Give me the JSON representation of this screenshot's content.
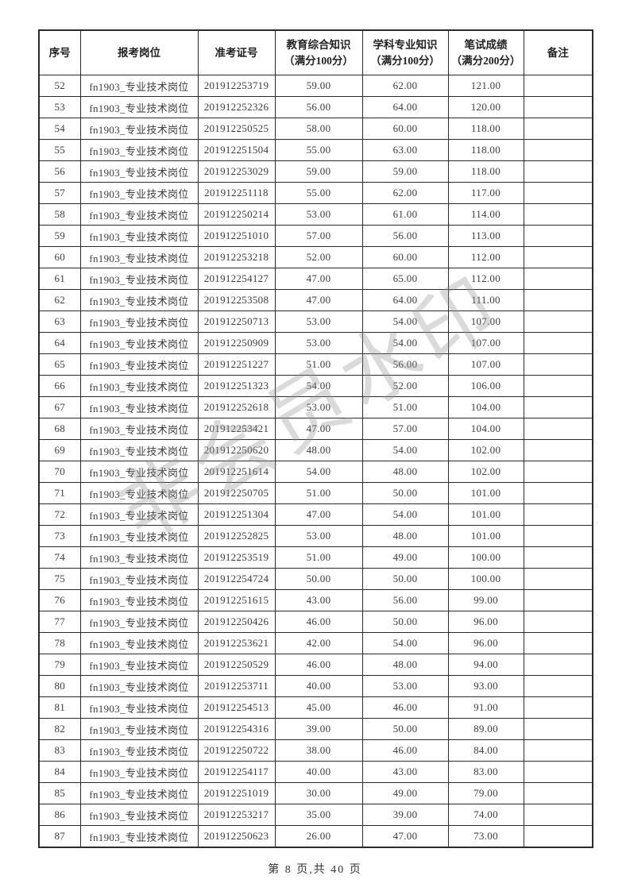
{
  "watermark": "非会员水印",
  "footer": {
    "text": "第 8 页,共 40 页"
  },
  "table": {
    "headers": [
      {
        "label": "序号"
      },
      {
        "label": "报考岗位"
      },
      {
        "label": "准考证号"
      },
      {
        "label": "教育综合知识\n（满分100分）"
      },
      {
        "label": "学科专业知识\n（满分100分）"
      },
      {
        "label": "笔试成绩\n（满分200分）"
      },
      {
        "label": "备注"
      }
    ],
    "rows": [
      {
        "no": "52",
        "position": "fn1903_专业技术岗位",
        "ticket": "201912253719",
        "edu": "59.00",
        "subject": "62.00",
        "total": "121.00",
        "remark": ""
      },
      {
        "no": "53",
        "position": "fn1903_专业技术岗位",
        "ticket": "201912252326",
        "edu": "56.00",
        "subject": "64.00",
        "total": "120.00",
        "remark": ""
      },
      {
        "no": "54",
        "position": "fn1903_专业技术岗位",
        "ticket": "201912250525",
        "edu": "58.00",
        "subject": "60.00",
        "total": "118.00",
        "remark": ""
      },
      {
        "no": "55",
        "position": "fn1903_专业技术岗位",
        "ticket": "201912251504",
        "edu": "55.00",
        "subject": "63.00",
        "total": "118.00",
        "remark": ""
      },
      {
        "no": "56",
        "position": "fn1903_专业技术岗位",
        "ticket": "201912253029",
        "edu": "59.00",
        "subject": "59.00",
        "total": "118.00",
        "remark": ""
      },
      {
        "no": "57",
        "position": "fn1903_专业技术岗位",
        "ticket": "201912251118",
        "edu": "55.00",
        "subject": "62.00",
        "total": "117.00",
        "remark": ""
      },
      {
        "no": "58",
        "position": "fn1903_专业技术岗位",
        "ticket": "201912250214",
        "edu": "53.00",
        "subject": "61.00",
        "total": "114.00",
        "remark": ""
      },
      {
        "no": "59",
        "position": "fn1903_专业技术岗位",
        "ticket": "201912251010",
        "edu": "57.00",
        "subject": "56.00",
        "total": "113.00",
        "remark": ""
      },
      {
        "no": "60",
        "position": "fn1903_专业技术岗位",
        "ticket": "201912253218",
        "edu": "52.00",
        "subject": "60.00",
        "total": "112.00",
        "remark": ""
      },
      {
        "no": "61",
        "position": "fn1903_专业技术岗位",
        "ticket": "201912254127",
        "edu": "47.00",
        "subject": "65.00",
        "total": "112.00",
        "remark": ""
      },
      {
        "no": "62",
        "position": "fn1903_专业技术岗位",
        "ticket": "201912253508",
        "edu": "47.00",
        "subject": "64.00",
        "total": "111.00",
        "remark": ""
      },
      {
        "no": "63",
        "position": "fn1903_专业技术岗位",
        "ticket": "201912250713",
        "edu": "53.00",
        "subject": "54.00",
        "total": "107.00",
        "remark": ""
      },
      {
        "no": "64",
        "position": "fn1903_专业技术岗位",
        "ticket": "201912250909",
        "edu": "53.00",
        "subject": "54.00",
        "total": "107.00",
        "remark": ""
      },
      {
        "no": "65",
        "position": "fn1903_专业技术岗位",
        "ticket": "201912251227",
        "edu": "51.00",
        "subject": "56.00",
        "total": "107.00",
        "remark": ""
      },
      {
        "no": "66",
        "position": "fn1903_专业技术岗位",
        "ticket": "201912251323",
        "edu": "54.00",
        "subject": "52.00",
        "total": "106.00",
        "remark": ""
      },
      {
        "no": "67",
        "position": "fn1903_专业技术岗位",
        "ticket": "201912252618",
        "edu": "53.00",
        "subject": "51.00",
        "total": "104.00",
        "remark": ""
      },
      {
        "no": "68",
        "position": "fn1903_专业技术岗位",
        "ticket": "201912253421",
        "edu": "47.00",
        "subject": "57.00",
        "total": "104.00",
        "remark": ""
      },
      {
        "no": "69",
        "position": "fn1903_专业技术岗位",
        "ticket": "201912250620",
        "edu": "48.00",
        "subject": "54.00",
        "total": "102.00",
        "remark": ""
      },
      {
        "no": "70",
        "position": "fn1903_专业技术岗位",
        "ticket": "201912251614",
        "edu": "54.00",
        "subject": "48.00",
        "total": "102.00",
        "remark": ""
      },
      {
        "no": "71",
        "position": "fn1903_专业技术岗位",
        "ticket": "201912250705",
        "edu": "51.00",
        "subject": "50.00",
        "total": "101.00",
        "remark": ""
      },
      {
        "no": "72",
        "position": "fn1903_专业技术岗位",
        "ticket": "201912251304",
        "edu": "47.00",
        "subject": "54.00",
        "total": "101.00",
        "remark": ""
      },
      {
        "no": "73",
        "position": "fn1903_专业技术岗位",
        "ticket": "201912252825",
        "edu": "53.00",
        "subject": "48.00",
        "total": "101.00",
        "remark": ""
      },
      {
        "no": "74",
        "position": "fn1903_专业技术岗位",
        "ticket": "201912253519",
        "edu": "51.00",
        "subject": "49.00",
        "total": "100.00",
        "remark": ""
      },
      {
        "no": "75",
        "position": "fn1903_专业技术岗位",
        "ticket": "201912254724",
        "edu": "50.00",
        "subject": "50.00",
        "total": "100.00",
        "remark": ""
      },
      {
        "no": "76",
        "position": "fn1903_专业技术岗位",
        "ticket": "201912251615",
        "edu": "43.00",
        "subject": "56.00",
        "total": "99.00",
        "remark": ""
      },
      {
        "no": "77",
        "position": "fn1903_专业技术岗位",
        "ticket": "201912250426",
        "edu": "46.00",
        "subject": "50.00",
        "total": "96.00",
        "remark": ""
      },
      {
        "no": "78",
        "position": "fn1903_专业技术岗位",
        "ticket": "201912253621",
        "edu": "42.00",
        "subject": "54.00",
        "total": "96.00",
        "remark": ""
      },
      {
        "no": "79",
        "position": "fn1903_专业技术岗位",
        "ticket": "201912250529",
        "edu": "46.00",
        "subject": "48.00",
        "total": "94.00",
        "remark": ""
      },
      {
        "no": "80",
        "position": "fn1903_专业技术岗位",
        "ticket": "201912253711",
        "edu": "40.00",
        "subject": "53.00",
        "total": "93.00",
        "remark": ""
      },
      {
        "no": "81",
        "position": "fn1903_专业技术岗位",
        "ticket": "201912254513",
        "edu": "45.00",
        "subject": "46.00",
        "total": "91.00",
        "remark": ""
      },
      {
        "no": "82",
        "position": "fn1903_专业技术岗位",
        "ticket": "201912254316",
        "edu": "39.00",
        "subject": "50.00",
        "total": "89.00",
        "remark": ""
      },
      {
        "no": "83",
        "position": "fn1903_专业技术岗位",
        "ticket": "201912250722",
        "edu": "38.00",
        "subject": "46.00",
        "total": "84.00",
        "remark": ""
      },
      {
        "no": "84",
        "position": "fn1903_专业技术岗位",
        "ticket": "201912254117",
        "edu": "40.00",
        "subject": "43.00",
        "total": "83.00",
        "remark": ""
      },
      {
        "no": "85",
        "position": "fn1903_专业技术岗位",
        "ticket": "201912251019",
        "edu": "30.00",
        "subject": "49.00",
        "total": "79.00",
        "remark": ""
      },
      {
        "no": "86",
        "position": "fn1903_专业技术岗位",
        "ticket": "201912253217",
        "edu": "35.00",
        "subject": "39.00",
        "total": "74.00",
        "remark": ""
      },
      {
        "no": "87",
        "position": "fn1903_专业技术岗位",
        "ticket": "201912250623",
        "edu": "26.00",
        "subject": "47.00",
        "total": "73.00",
        "remark": ""
      }
    ]
  }
}
